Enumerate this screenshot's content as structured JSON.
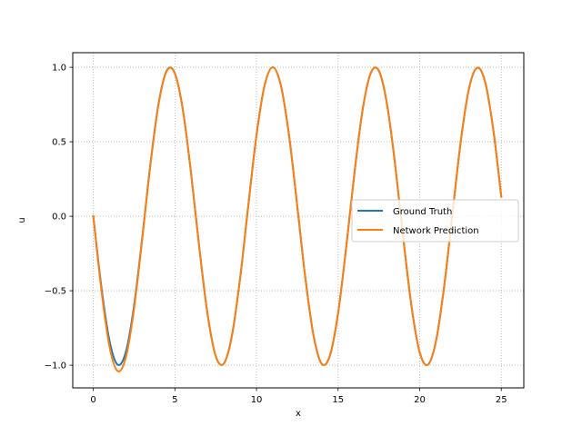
{
  "chart_data": {
    "type": "line",
    "title": "",
    "xlabel": "x",
    "ylabel": "u",
    "xlim": [
      -1.26,
      26.38
    ],
    "ylim": [
      -1.152,
      1.098
    ],
    "xticks": [
      0,
      5,
      10,
      15,
      20,
      25
    ],
    "yticks": [
      -1.0,
      -0.5,
      0.0,
      0.5,
      1.0
    ],
    "xtick_labels": [
      "0",
      "5",
      "10",
      "15",
      "20",
      "25"
    ],
    "ytick_labels": [
      "−1.0",
      "−0.5",
      "0.0",
      "0.5",
      "1.0"
    ],
    "grid": true,
    "legend_position": "center-right",
    "series": [
      {
        "name": "Ground Truth",
        "color": "#1f77b4",
        "x": [
          0,
          0.5,
          1.0,
          1.5,
          2.0,
          2.5,
          3.0,
          3.5,
          4.0,
          4.5,
          5.0,
          5.5,
          6.0,
          6.5,
          7.0,
          7.5,
          8.0,
          8.5,
          9.0,
          9.5,
          10.0,
          10.5,
          11.0,
          11.5,
          12.0,
          12.5,
          13.0,
          13.5,
          14.0,
          14.5,
          15.0,
          15.5,
          16.0,
          16.5,
          17.0,
          17.5,
          18.0,
          18.5,
          19.0,
          19.5,
          20.0,
          20.5,
          21.0,
          21.5,
          22.0,
          22.5,
          23.0,
          23.5,
          24.0,
          24.5,
          25.0
        ],
        "y": [
          0.0,
          -0.479,
          -0.841,
          -0.997,
          -0.909,
          -0.598,
          -0.141,
          0.351,
          0.757,
          0.978,
          0.959,
          0.706,
          0.279,
          -0.215,
          -0.657,
          -0.938,
          -0.989,
          -0.798,
          -0.412,
          0.075,
          0.544,
          0.88,
          1.0,
          0.875,
          0.537,
          0.066,
          -0.42,
          -0.803,
          -0.991,
          -0.935,
          -0.65,
          -0.206,
          0.288,
          0.712,
          0.961,
          0.976,
          0.751,
          0.342,
          -0.151,
          -0.606,
          -0.913,
          -0.997,
          -0.837,
          -0.471,
          0.009,
          0.487,
          0.846,
          0.996,
          0.906,
          0.59,
          0.132
        ]
      },
      {
        "name": "Network Prediction",
        "color": "#ff7f0e",
        "x": [
          0,
          0.5,
          1.0,
          1.5,
          2.0,
          2.5,
          3.0,
          3.5,
          4.0,
          4.5,
          5.0,
          5.5,
          6.0,
          6.5,
          7.0,
          7.5,
          8.0,
          8.5,
          9.0,
          9.5,
          10.0,
          10.5,
          11.0,
          11.5,
          12.0,
          12.5,
          13.0,
          13.5,
          14.0,
          14.5,
          15.0,
          15.5,
          16.0,
          16.5,
          17.0,
          17.5,
          18.0,
          18.5,
          19.0,
          19.5,
          20.0,
          20.5,
          21.0,
          21.5,
          22.0,
          22.5,
          23.0,
          23.5,
          24.0,
          24.5,
          25.0
        ],
        "y": [
          0.0,
          -0.5,
          -0.88,
          -1.04,
          -0.945,
          -0.62,
          -0.15,
          0.345,
          0.752,
          0.975,
          0.957,
          0.706,
          0.279,
          -0.215,
          -0.657,
          -0.938,
          -0.989,
          -0.798,
          -0.412,
          0.075,
          0.544,
          0.88,
          1.0,
          0.875,
          0.537,
          0.066,
          -0.42,
          -0.803,
          -0.991,
          -0.935,
          -0.65,
          -0.206,
          0.288,
          0.712,
          0.961,
          0.976,
          0.751,
          0.342,
          -0.151,
          -0.606,
          -0.913,
          -0.997,
          -0.837,
          -0.471,
          0.009,
          0.487,
          0.846,
          0.996,
          0.906,
          0.59,
          0.132
        ]
      }
    ]
  }
}
